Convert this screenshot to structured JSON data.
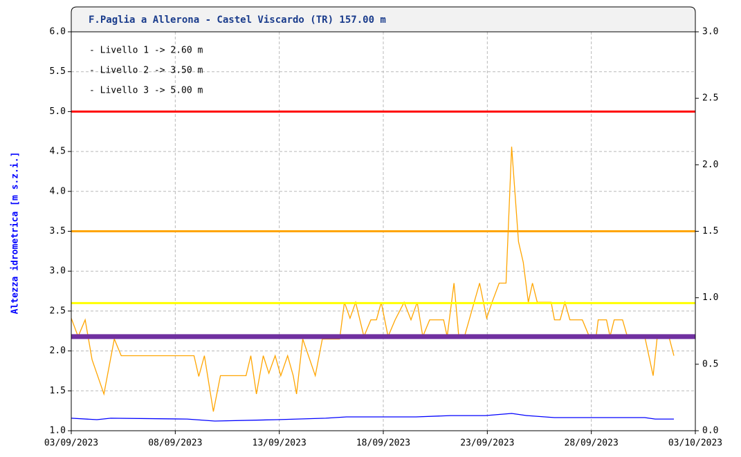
{
  "chart_data": {
    "type": "line",
    "title": "F.Paglia a Allerona - Castel Viscardo (TR) 157.00 m",
    "y_label": "Altezza idrometrica [m s.z.i.]",
    "annotations": [
      "- Livello 1 -> 2.60 m",
      "- Livello 2 -> 3.50 m",
      "- Livello 3 -> 5.00 m"
    ],
    "grid": true,
    "xlim": [
      0,
      30
    ],
    "xticks": [
      {
        "value": 0,
        "label": "03/09/2023"
      },
      {
        "value": 5,
        "label": "08/09/2023"
      },
      {
        "value": 10,
        "label": "13/09/2023"
      },
      {
        "value": 15,
        "label": "18/09/2023"
      },
      {
        "value": 20,
        "label": "23/09/2023"
      },
      {
        "value": 25,
        "label": "28/09/2023"
      },
      {
        "value": 30,
        "label": "03/10/2023"
      }
    ],
    "ylim": [
      1,
      6
    ],
    "yticks": [
      {
        "value": 1,
        "label": "1.0"
      },
      1.5,
      {
        "value": 2,
        "label": "2.0"
      },
      2.5,
      {
        "value": 3,
        "label": "3.0"
      },
      3.5,
      {
        "value": 4,
        "label": "4.0"
      },
      4.5,
      {
        "value": 5,
        "label": "5.0"
      },
      5.5,
      {
        "value": 6,
        "label": "6.0"
      }
    ],
    "y2lim": [
      0,
      3
    ],
    "y2ticks": [
      {
        "value": 0,
        "label": "0.0"
      },
      0.5,
      {
        "value": 1,
        "label": "1.0"
      },
      1.5,
      {
        "value": 2,
        "label": "2.0"
      },
      2.5,
      {
        "value": 3,
        "label": "3.0"
      }
    ],
    "thresholds": [
      {
        "value": 5.0,
        "color": "#ff0000",
        "width": 3
      },
      {
        "value": 3.5,
        "color": "#ffa500",
        "width": 3
      },
      {
        "value": 2.6,
        "color": "#ffff00",
        "width": 3
      },
      {
        "value": 2.18,
        "color": "#7030a0",
        "width": 7
      }
    ],
    "series": [
      {
        "color": "#ffa500",
        "x": [
          0,
          0.33,
          0.67,
          1.0,
          1.57,
          2.07,
          2.4,
          5.9,
          6.13,
          6.4,
          6.83,
          7.17,
          8.4,
          8.63,
          8.9,
          9.23,
          9.5,
          9.8,
          10.07,
          10.4,
          10.67,
          10.83,
          11.13,
          11.4,
          11.73,
          12.07,
          12.9,
          13.13,
          13.4,
          13.67,
          14.07,
          14.4,
          14.67,
          14.9,
          15.23,
          15.57,
          16.0,
          16.33,
          16.63,
          16.9,
          17.23,
          17.9,
          18.07,
          18.4,
          18.63,
          18.9,
          19.63,
          19.97,
          20.23,
          20.57,
          20.9,
          21.17,
          21.5,
          21.73,
          21.97,
          22.17,
          22.4,
          23.07,
          23.23,
          23.5,
          23.73,
          23.97,
          24.57,
          24.9,
          25.23,
          25.33,
          25.73,
          25.9,
          26.1,
          26.5,
          26.73,
          27.57,
          27.97,
          28.17,
          28.5,
          28.73,
          28.97
        ],
        "values": [
          2.41,
          2.18,
          2.39,
          1.89,
          1.46,
          2.15,
          1.94,
          1.94,
          1.68,
          1.94,
          1.24,
          1.69,
          1.69,
          1.94,
          1.46,
          1.94,
          1.72,
          1.94,
          1.69,
          1.94,
          1.69,
          1.46,
          2.15,
          1.94,
          1.69,
          2.15,
          2.15,
          2.61,
          2.41,
          2.61,
          2.18,
          2.39,
          2.39,
          2.61,
          2.18,
          2.39,
          2.61,
          2.39,
          2.61,
          2.18,
          2.39,
          2.39,
          2.18,
          2.85,
          2.18,
          2.18,
          2.85,
          2.41,
          2.61,
          2.85,
          2.85,
          4.56,
          3.37,
          3.11,
          2.61,
          2.85,
          2.61,
          2.61,
          2.39,
          2.39,
          2.61,
          2.39,
          2.39,
          2.18,
          2.18,
          2.39,
          2.39,
          2.18,
          2.39,
          2.39,
          2.18,
          2.18,
          1.69,
          2.18,
          2.18,
          2.18,
          1.94
        ]
      },
      {
        "color": "#0000ff",
        "axis": "y2",
        "x": [
          0,
          1.23,
          1.9,
          5.57,
          6.9,
          9.9,
          12.23,
          13.23,
          16.57,
          18.23,
          19.9,
          21.17,
          21.9,
          23.23,
          27.57,
          28.07,
          28.97
        ],
        "values": [
          0.094,
          0.083,
          0.094,
          0.088,
          0.073,
          0.083,
          0.094,
          0.104,
          0.104,
          0.114,
          0.114,
          0.13,
          0.114,
          0.099,
          0.099,
          0.088,
          0.088
        ]
      }
    ]
  }
}
